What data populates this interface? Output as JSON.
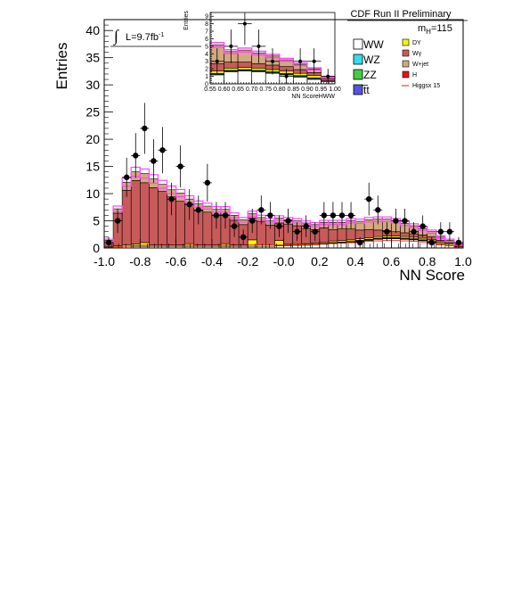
{
  "header": {
    "title": "CDF Run II Preliminary",
    "mass_label_prefix": "m",
    "mass_label_sub": "H",
    "mass_label_value": "=115"
  },
  "luminosity": {
    "integral_sign": "∫",
    "text": "L=9.7fb",
    "exponent": "-1"
  },
  "legend": {
    "left": [
      {
        "label": "WW",
        "color": "#ffffff"
      },
      {
        "label": "WZ",
        "color": "#33ddee"
      },
      {
        "label": "ZZ",
        "color": "#44cc44"
      },
      {
        "label": "t̅t",
        "color": "#5555dd"
      }
    ],
    "right": [
      {
        "label": "DY",
        "color": "#f5f500"
      },
      {
        "label": "Wγ",
        "color": "#c85a5a"
      },
      {
        "label": "W+jet",
        "color": "#d2aa7d"
      },
      {
        "label": "H",
        "color": "#ee1111"
      },
      {
        "label": "Higgsx 15",
        "color": "#ee1111",
        "line": true
      }
    ]
  },
  "chart_data": [
    {
      "type": "histogram",
      "title": "",
      "xlabel": "NN Score",
      "ylabel": "Entries",
      "xlim": [
        -1.0,
        1.0
      ],
      "ylim": [
        0,
        42
      ],
      "xticks": [
        "-1.0",
        "-0.8",
        "-0.6",
        "-0.4",
        "-0.2",
        "-0.0",
        "0.2",
        "0.4",
        "0.6",
        "0.8",
        "1.0"
      ],
      "yticks": [
        "0",
        "5",
        "10",
        "15",
        "20",
        "25",
        "30",
        "35",
        "40"
      ],
      "bin_edges": [
        -1.0,
        -0.95,
        -0.9,
        -0.85,
        -0.8,
        -0.75,
        -0.7,
        -0.65,
        -0.6,
        -0.55,
        -0.5,
        -0.45,
        -0.4,
        -0.35,
        -0.3,
        -0.25,
        -0.2,
        -0.15,
        -0.1,
        -0.05,
        0.0,
        0.05,
        0.1,
        0.15,
        0.2,
        0.25,
        0.3,
        0.35,
        0.4,
        0.45,
        0.5,
        0.55,
        0.6,
        0.65,
        0.7,
        0.75,
        0.8,
        0.85,
        0.9,
        0.95,
        1.0
      ],
      "stack": [
        {
          "name": "WW",
          "color": "#ffffff",
          "values": [
            0.1,
            0.2,
            0.3,
            0.3,
            0.3,
            0.3,
            0.3,
            0.3,
            0.3,
            0.3,
            0.3,
            0.3,
            0.3,
            0.3,
            0.3,
            0.3,
            0.3,
            0.3,
            0.3,
            0.4,
            0.4,
            0.5,
            0.5,
            0.6,
            0.7,
            0.8,
            0.9,
            1.0,
            1.2,
            1.4,
            1.6,
            1.7,
            1.7,
            1.6,
            1.5,
            1.3,
            1.0,
            0.7,
            0.4,
            0.2
          ]
        },
        {
          "name": "WZ",
          "color": "#33ddee",
          "values": [
            0,
            0,
            0,
            0,
            0,
            0,
            0,
            0,
            0,
            0,
            0,
            0,
            0,
            0,
            0,
            0,
            0,
            0,
            0,
            0,
            0,
            0,
            0,
            0,
            0,
            0.1,
            0.1,
            0.1,
            0.1,
            0.1,
            0.1,
            0.1,
            0.1,
            0.1,
            0.1,
            0.1,
            0.1,
            0,
            0,
            0
          ]
        },
        {
          "name": "ZZ",
          "color": "#44cc44",
          "values": [
            0,
            0,
            0,
            0,
            0,
            0,
            0,
            0,
            0,
            0,
            0,
            0,
            0,
            0,
            0,
            0,
            0,
            0,
            0,
            0,
            0,
            0,
            0,
            0,
            0,
            0.1,
            0.1,
            0.1,
            0.1,
            0.1,
            0.1,
            0.1,
            0.1,
            0.1,
            0.1,
            0.1,
            0.1,
            0,
            0,
            0
          ]
        },
        {
          "name": "tt",
          "color": "#5555dd",
          "values": [
            0,
            0,
            0,
            0,
            0,
            0,
            0,
            0,
            0,
            0,
            0,
            0,
            0,
            0,
            0,
            0,
            0,
            0,
            0,
            0,
            0,
            0,
            0,
            0,
            0,
            0,
            0,
            0,
            0,
            0,
            0,
            0,
            0,
            0,
            0,
            0,
            0,
            0,
            0,
            0
          ]
        },
        {
          "name": "DY",
          "color": "#f5f500",
          "values": [
            0.1,
            0.2,
            0.3,
            0.4,
            0.7,
            0.3,
            0.3,
            0.3,
            0.3,
            0.5,
            0.3,
            0.3,
            0.3,
            0.5,
            0.3,
            0.3,
            1.2,
            0.3,
            0.3,
            1.0,
            0.3,
            0.3,
            0.3,
            0.3,
            0.3,
            0.3,
            0.3,
            0.3,
            0.3,
            0.3,
            0.3,
            0.3,
            0.3,
            0.3,
            0.3,
            0.3,
            0.3,
            0.3,
            0.3,
            0.1
          ]
        },
        {
          "name": "Wγ",
          "color": "#c85a5a",
          "values": [
            1.0,
            6.0,
            10.0,
            11.7,
            11.0,
            10.5,
            9.8,
            8.8,
            8.0,
            7.3,
            6.3,
            6.0,
            5.5,
            5.3,
            4.5,
            3.7,
            4.0,
            4.3,
            3.6,
            3.2,
            3.7,
            3.3,
            2.8,
            2.5,
            2.7,
            2.1,
            2.1,
            2.0,
            1.6,
            1.5,
            1.2,
            1.0,
            0.8,
            0.7,
            0.6,
            0.6,
            0.6,
            0.4,
            0.3,
            0.2
          ]
        },
        {
          "name": "W+jet",
          "color": "#d2aa7d",
          "values": [
            0.2,
            0.8,
            1.5,
            1.6,
            1.7,
            1.6,
            1.3,
            1.3,
            1.5,
            0.9,
            1.2,
            1.1,
            1.0,
            1.0,
            0.9,
            0.9,
            0.8,
            0.7,
            0.8,
            0.9,
            0.8,
            0.9,
            1.0,
            0.9,
            1.0,
            1.3,
            1.2,
            1.5,
            1.6,
            1.8,
            2.0,
            2.1,
            2.0,
            1.7,
            1.5,
            1.2,
            0.9,
            0.6,
            0.4,
            0.2
          ]
        },
        {
          "name": "H",
          "color": "#ee1111",
          "values": [
            0,
            0,
            0,
            0,
            0,
            0,
            0,
            0,
            0,
            0,
            0,
            0,
            0,
            0,
            0,
            0,
            0,
            0,
            0,
            0,
            0,
            0,
            0,
            0,
            0,
            0,
            0,
            0,
            0,
            0,
            0,
            0,
            0,
            0,
            0,
            0,
            0,
            0,
            0,
            0
          ]
        }
      ],
      "uncertainty_band": {
        "color": "#ff44ff",
        "relative": 0.05
      },
      "signal_x15": {
        "name": "Higgsx 15",
        "color": "#ee1111",
        "values": [
          0.1,
          0.2,
          0.3,
          0.4,
          0.5,
          0.5,
          0.5,
          0.5,
          0.5,
          0.5,
          0.5,
          0.5,
          0.5,
          0.5,
          0.5,
          0.5,
          0.6,
          0.6,
          0.6,
          0.6,
          0.6,
          0.6,
          0.7,
          0.7,
          0.8,
          0.8,
          0.9,
          1.0,
          1.1,
          1.2,
          1.3,
          1.4,
          1.4,
          1.3,
          1.2,
          1.0,
          0.8,
          0.6,
          0.4,
          0.2
        ]
      },
      "data_points": {
        "name": "Data",
        "x": [
          -0.975,
          -0.925,
          -0.875,
          -0.825,
          -0.775,
          -0.725,
          -0.675,
          -0.625,
          -0.575,
          -0.525,
          -0.475,
          -0.425,
          -0.375,
          -0.325,
          -0.275,
          -0.225,
          -0.175,
          -0.125,
          -0.075,
          -0.025,
          0.025,
          0.075,
          0.125,
          0.175,
          0.225,
          0.275,
          0.325,
          0.375,
          0.425,
          0.475,
          0.525,
          0.575,
          0.625,
          0.675,
          0.725,
          0.775,
          0.825,
          0.875,
          0.925,
          0.975
        ],
        "y": [
          1,
          5,
          13,
          17,
          22,
          16,
          18,
          9,
          15,
          8,
          7,
          12,
          6,
          6,
          4,
          2,
          5,
          7,
          6,
          4,
          5,
          3,
          4,
          3,
          6,
          6,
          6,
          6,
          1,
          9,
          7,
          3,
          5,
          5,
          3,
          4,
          1,
          3,
          3,
          1
        ]
      }
    },
    {
      "type": "histogram",
      "title": "",
      "xlabel": "NN ScoreHWW",
      "ylabel": "Entries",
      "xlim": [
        0.55,
        1.0
      ],
      "ylim": [
        0,
        9.5
      ],
      "xticks": [
        "0.55",
        "0.60",
        "0.65",
        "0.70",
        "0.75",
        "0.80",
        "0.85",
        "0.90",
        "0.95",
        "1.00"
      ],
      "yticks": [
        "0",
        "1",
        "2",
        "3",
        "4",
        "5",
        "6",
        "7",
        "8",
        "9"
      ],
      "bin_edges": [
        0.55,
        0.6,
        0.65,
        0.7,
        0.75,
        0.8,
        0.85,
        0.9,
        0.95,
        1.0
      ],
      "stack": [
        {
          "name": "WW",
          "color": "#ffffff",
          "values": [
            1.2,
            1.6,
            1.7,
            1.6,
            1.4,
            1.2,
            0.9,
            0.6,
            0.3
          ]
        },
        {
          "name": "WZ",
          "color": "#33ddee",
          "values": [
            0.1,
            0.1,
            0.1,
            0.1,
            0.1,
            0.1,
            0.1,
            0.1,
            0.0
          ]
        },
        {
          "name": "ZZ",
          "color": "#44cc44",
          "values": [
            0.1,
            0.1,
            0.1,
            0.1,
            0.1,
            0.1,
            0.1,
            0.1,
            0.0
          ]
        },
        {
          "name": "tt",
          "color": "#5555dd",
          "values": [
            0,
            0,
            0,
            0,
            0,
            0,
            0,
            0,
            0
          ]
        },
        {
          "name": "DY",
          "color": "#f5f500",
          "values": [
            0.3,
            0.3,
            0.3,
            0.3,
            0.3,
            0.3,
            0.3,
            0.3,
            0.1
          ]
        },
        {
          "name": "Wγ",
          "color": "#c85a5a",
          "values": [
            1.0,
            0.8,
            0.7,
            0.6,
            0.6,
            0.6,
            0.5,
            0.4,
            0.3
          ]
        },
        {
          "name": "W+jet",
          "color": "#d2aa7d",
          "values": [
            2.5,
            1.4,
            1.6,
            1.4,
            1.2,
            0.9,
            0.7,
            0.5,
            0.2
          ]
        },
        {
          "name": "H",
          "color": "#ee1111",
          "values": [
            0,
            0,
            0,
            0,
            0,
            0,
            0,
            0,
            0
          ]
        }
      ],
      "uncertainty_band": {
        "color": "#ff44ff",
        "relative": 0.05
      },
      "data_points": {
        "name": "Data",
        "x": [
          0.575,
          0.625,
          0.675,
          0.725,
          0.775,
          0.825,
          0.875,
          0.925,
          0.975
        ],
        "y": [
          3,
          5,
          8,
          5,
          3,
          1,
          3,
          3,
          1
        ]
      }
    }
  ]
}
